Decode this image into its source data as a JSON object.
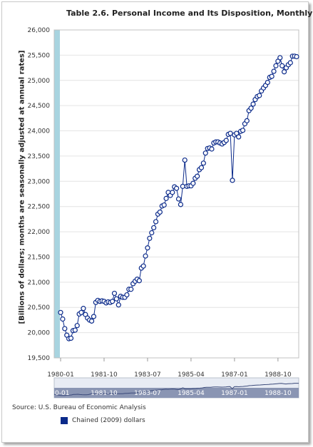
{
  "chart_data": {
    "type": "line",
    "title": "Table 2.6. Personal Income and Its Disposition, Monthly",
    "ylabel": "[Billions of dollars; months are seasonally adjusted at annual rates]",
    "xlabel": "",
    "ylim": [
      19500,
      26000
    ],
    "yticks": [
      "26,000",
      "25,500",
      "25,000",
      "24,500",
      "24,000",
      "23,500",
      "23,000",
      "22,500",
      "22,000",
      "21,500",
      "21,000",
      "20,500",
      "20,000",
      "19,500"
    ],
    "ytick_values": [
      26000,
      25500,
      25000,
      24500,
      24000,
      23500,
      23000,
      22500,
      22000,
      21500,
      21000,
      20500,
      20000,
      19500
    ],
    "xticks": [
      "1980-01",
      "1981-10",
      "1983-07",
      "1985-04",
      "1987-01",
      "1988-10"
    ],
    "xtick_index": [
      0,
      21,
      42,
      63,
      84,
      105
    ],
    "navigator_labels": [
      "0-01",
      "1981-10",
      "1983-07",
      "1985-04",
      "1987-01",
      "1988-10"
    ],
    "series": [
      {
        "name": "Chained (2009) dollars",
        "color": "#0b2a8a",
        "start": "1980-01",
        "values": [
          20400,
          20270,
          20080,
          19950,
          19880,
          19890,
          20040,
          20050,
          20140,
          20370,
          20400,
          20480,
          20360,
          20290,
          20250,
          20230,
          20320,
          20600,
          20640,
          20620,
          20630,
          20620,
          20590,
          20610,
          20600,
          20620,
          20780,
          20670,
          20550,
          20720,
          20700,
          20700,
          20750,
          20860,
          20860,
          20970,
          21020,
          21060,
          21030,
          21280,
          21320,
          21520,
          21680,
          21870,
          21980,
          22080,
          22200,
          22350,
          22390,
          22510,
          22530,
          22660,
          22780,
          22720,
          22780,
          22890,
          22860,
          22650,
          22540,
          22900,
          23420,
          22900,
          22910,
          22910,
          22960,
          23060,
          23100,
          23230,
          23270,
          23360,
          23560,
          23650,
          23660,
          23640,
          23760,
          23780,
          23780,
          23760,
          23740,
          23770,
          23810,
          23930,
          23950,
          23020,
          23920,
          23950,
          23880,
          23990,
          24010,
          24140,
          24200,
          24400,
          24450,
          24530,
          24620,
          24680,
          24700,
          24790,
          24850,
          24900,
          24960,
          25060,
          25080,
          25180,
          25290,
          25380,
          25450,
          25290,
          25170,
          25250,
          25310,
          25350,
          25480,
          25480,
          25470
        ]
      }
    ],
    "navigator": {
      "range": [
        "1980-01",
        "1989-07"
      ]
    },
    "source": "Source: U.S. Bureau of Economic Analysis"
  }
}
